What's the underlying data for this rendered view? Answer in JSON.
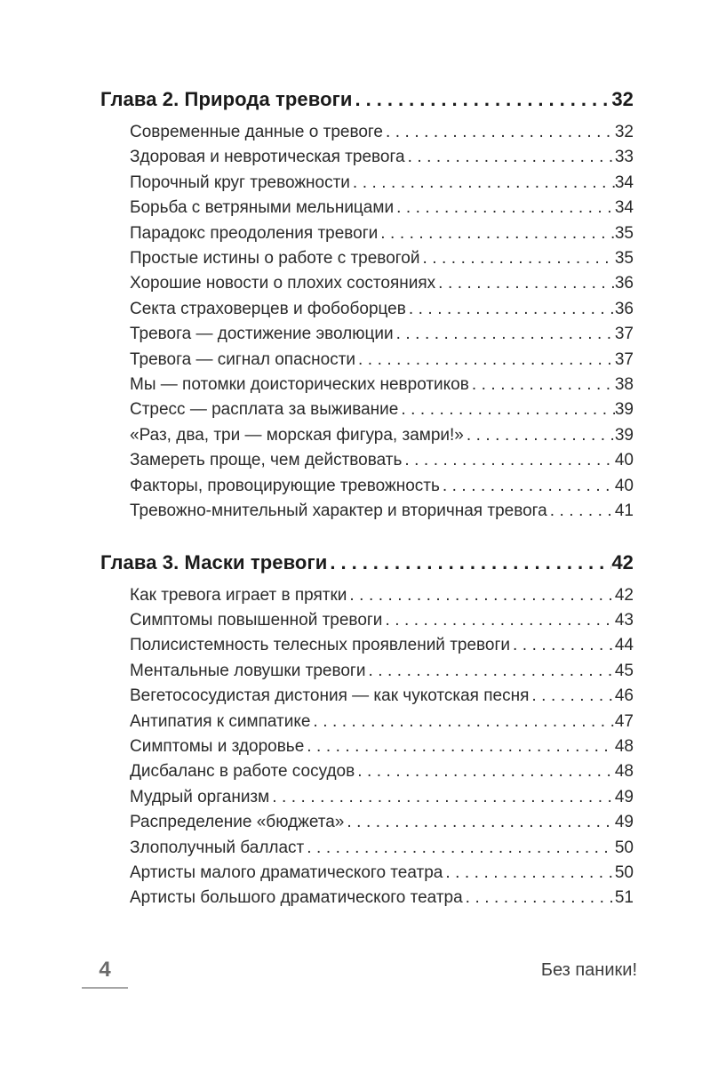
{
  "toc": {
    "sections": [
      {
        "title": "Глава 2. Природа тревоги",
        "page": "32",
        "entries": [
          {
            "label": "Современные данные о тревоге",
            "page": "32"
          },
          {
            "label": "Здоровая и невротическая тревога",
            "page": "33"
          },
          {
            "label": "Порочный круг тревожности",
            "page": "34"
          },
          {
            "label": "Борьба с ветряными мельницами",
            "page": "34"
          },
          {
            "label": "Парадокс преодоления тревоги",
            "page": "35"
          },
          {
            "label": "Простые истины о работе с тревогой",
            "page": "35"
          },
          {
            "label": "Хорошие новости о плохих состояниях",
            "page": "36"
          },
          {
            "label": "Секта страховерцев и фобоборцев",
            "page": "36"
          },
          {
            "label": "Тревога — достижение эволюции",
            "page": "37"
          },
          {
            "label": "Тревога — сигнал опасности",
            "page": "37"
          },
          {
            "label": "Мы — потомки доисторических невротиков",
            "page": "38"
          },
          {
            "label": "Стресс — расплата за выживание",
            "page": "39"
          },
          {
            "label": "«Раз, два, три — морская фигура, замри!»",
            "page": "39"
          },
          {
            "label": "Замереть проще, чем действовать",
            "page": "40"
          },
          {
            "label": "Факторы, провоцирующие тревожность",
            "page": "40"
          },
          {
            "label": "Тревожно-мнительный характер и вторичная тревога",
            "page": "41"
          }
        ]
      },
      {
        "title": "Глава 3. Маски тревоги",
        "page": "42",
        "entries": [
          {
            "label": "Как тревога играет в прятки",
            "page": "42"
          },
          {
            "label": "Симптомы повышенной тревоги",
            "page": "43"
          },
          {
            "label": "Полисистемность телесных проявлений тревоги",
            "page": "44"
          },
          {
            "label": "Ментальные ловушки тревоги",
            "page": "45"
          },
          {
            "label": "Вегетососудистая дистония — как чукотская песня",
            "page": "46"
          },
          {
            "label": "Антипатия к симпатике",
            "page": "47"
          },
          {
            "label": "Симптомы и здоровье",
            "page": "48"
          },
          {
            "label": "Дисбаланс в работе сосудов",
            "page": "48"
          },
          {
            "label": "Мудрый организм",
            "page": "49"
          },
          {
            "label": "Распределение «бюджета»",
            "page": "49"
          },
          {
            "label": "Злополучный балласт",
            "page": "50"
          },
          {
            "label": "Артисты малого драматического театра",
            "page": "50"
          },
          {
            "label": "Артисты большого драматического театра",
            "page": "51"
          }
        ]
      }
    ]
  },
  "footer": {
    "page_number": "4",
    "running_title": "Без паники!"
  }
}
